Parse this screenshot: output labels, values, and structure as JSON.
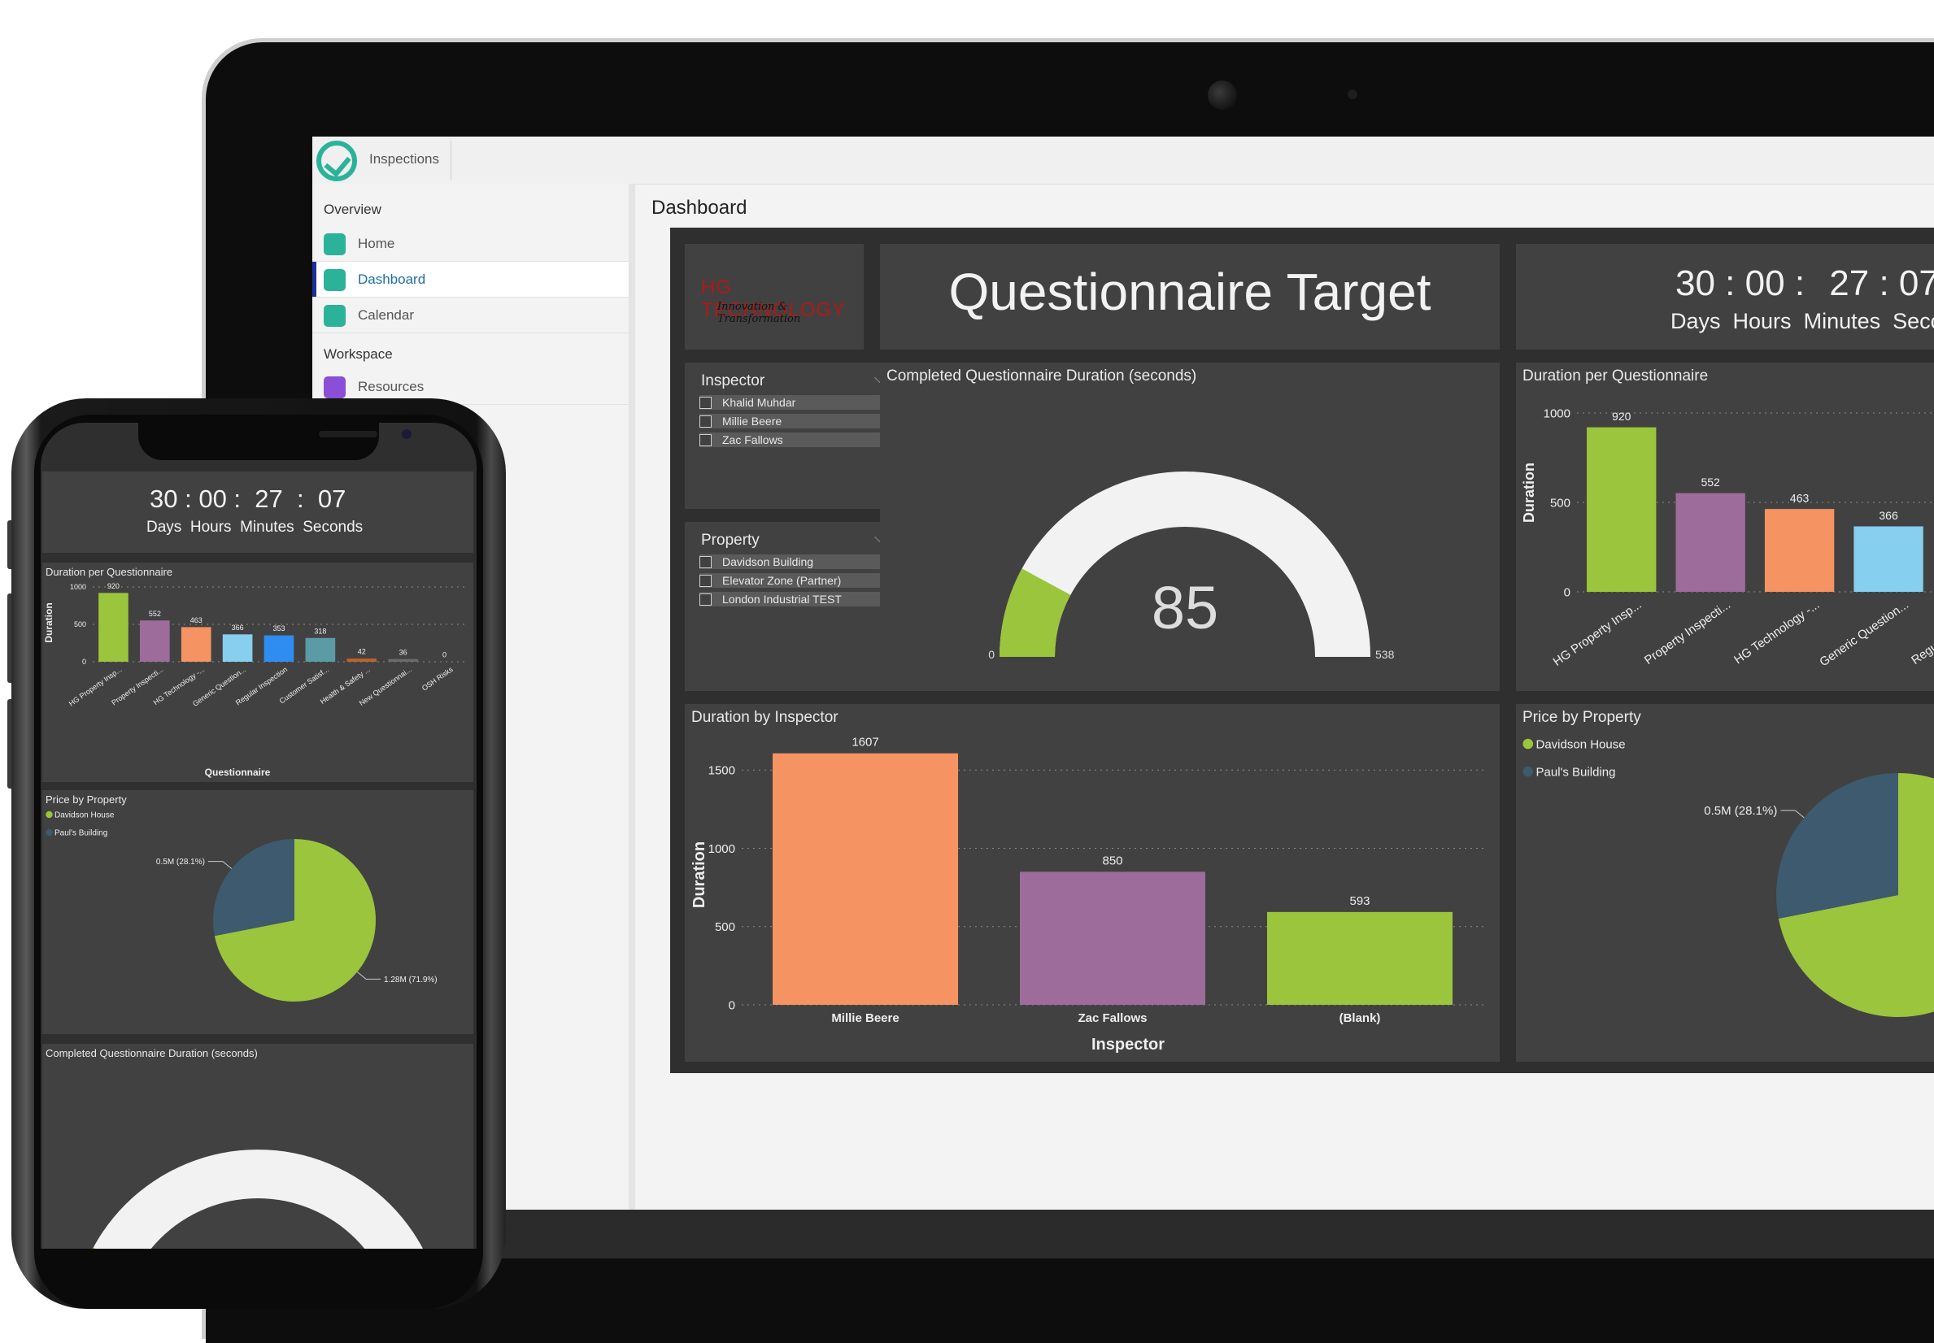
{
  "app": {
    "tab": "Inspections",
    "page_title": "Dashboard"
  },
  "sidebar": {
    "sections": [
      "Overview",
      "Workspace"
    ],
    "items": [
      {
        "label": "Home",
        "icon": "home-icon"
      },
      {
        "label": "Dashboard",
        "icon": "dashboard-icon",
        "active": true
      },
      {
        "label": "Calendar",
        "icon": "calendar-icon"
      },
      {
        "label": "Resources",
        "icon": "resources-icon"
      }
    ]
  },
  "colors": {
    "green": "#9bc53d",
    "purple": "#9e6c9b",
    "orange": "#f59462",
    "lightblue": "#87cfee",
    "blue": "#2f8cf0",
    "teal": "#5b9ba6",
    "slate": "#3d5a6e",
    "gauge_track": "#f2f2f2"
  },
  "report": {
    "logo": {
      "name": "HG TECHNOLOGY",
      "tagline": "Innovation & Transformation"
    },
    "banner": "Questionnaire Target",
    "countdown": {
      "days": "30",
      "hours": "00",
      "minutes": "27",
      "seconds": "07",
      "labels": [
        "Days",
        "Hours",
        "Minutes",
        "Seconds"
      ]
    },
    "slicers": [
      {
        "title": "Inspector",
        "items": [
          "Khalid Muhdar",
          "Millie Beere",
          "Zac Fallows"
        ]
      },
      {
        "title": "Property",
        "items": [
          "Davidson Building",
          "Elevator Zone (Partner)",
          "London Industrial TEST"
        ]
      }
    ]
  },
  "chart_data": [
    {
      "id": "gauge",
      "type": "gauge",
      "title": "Completed Questionnaire Duration (seconds)",
      "value": 85,
      "min": 0,
      "max": 538,
      "min_label": "0",
      "max_label": "538"
    },
    {
      "id": "duration_per_questionnaire",
      "type": "bar",
      "title": "Duration per Questionnaire",
      "xlabel": "Questionnaire",
      "ylabel": "Duration",
      "yticks": [
        0,
        500,
        1000
      ],
      "ylim": [
        0,
        1000
      ],
      "categories": [
        "HG Property Insp...",
        "Property Inspecti...",
        "HG Technology -...",
        "Generic Question...",
        "Regular Inspection",
        "Customer Satisf...",
        "Health & Safety ...",
        "New Questionnai...",
        "OSH Risks"
      ],
      "values": [
        920,
        552,
        463,
        366,
        353,
        318,
        42,
        36,
        0
      ],
      "colors": [
        "#9bc53d",
        "#9e6c9b",
        "#f59462",
        "#87cfee",
        "#2f8cf0",
        "#5b9ba6",
        "#c0612b",
        "#6b6b6b",
        "#888888"
      ]
    },
    {
      "id": "duration_by_inspector",
      "type": "bar",
      "title": "Duration by Inspector",
      "xlabel": "Inspector",
      "ylabel": "Duration",
      "yticks": [
        0,
        500,
        1000,
        1500
      ],
      "ylim": [
        0,
        1600
      ],
      "categories": [
        "Millie Beere",
        "Zac Fallows",
        "(Blank)"
      ],
      "values": [
        1607,
        850,
        593
      ],
      "colors": [
        "#f59462",
        "#9e6c9b",
        "#9bc53d"
      ]
    },
    {
      "id": "price_by_property",
      "type": "pie",
      "title": "Price by Property",
      "legend": [
        "Davidson House",
        "Paul's Building"
      ],
      "slices": [
        {
          "name": "Davidson House",
          "value": 1.28,
          "label": "1.28M (71.9%)",
          "color": "#9bc53d"
        },
        {
          "name": "Paul's Building",
          "value": 0.5,
          "label": "0.5M (28.1%)",
          "color": "#3d5a6e"
        }
      ]
    }
  ]
}
